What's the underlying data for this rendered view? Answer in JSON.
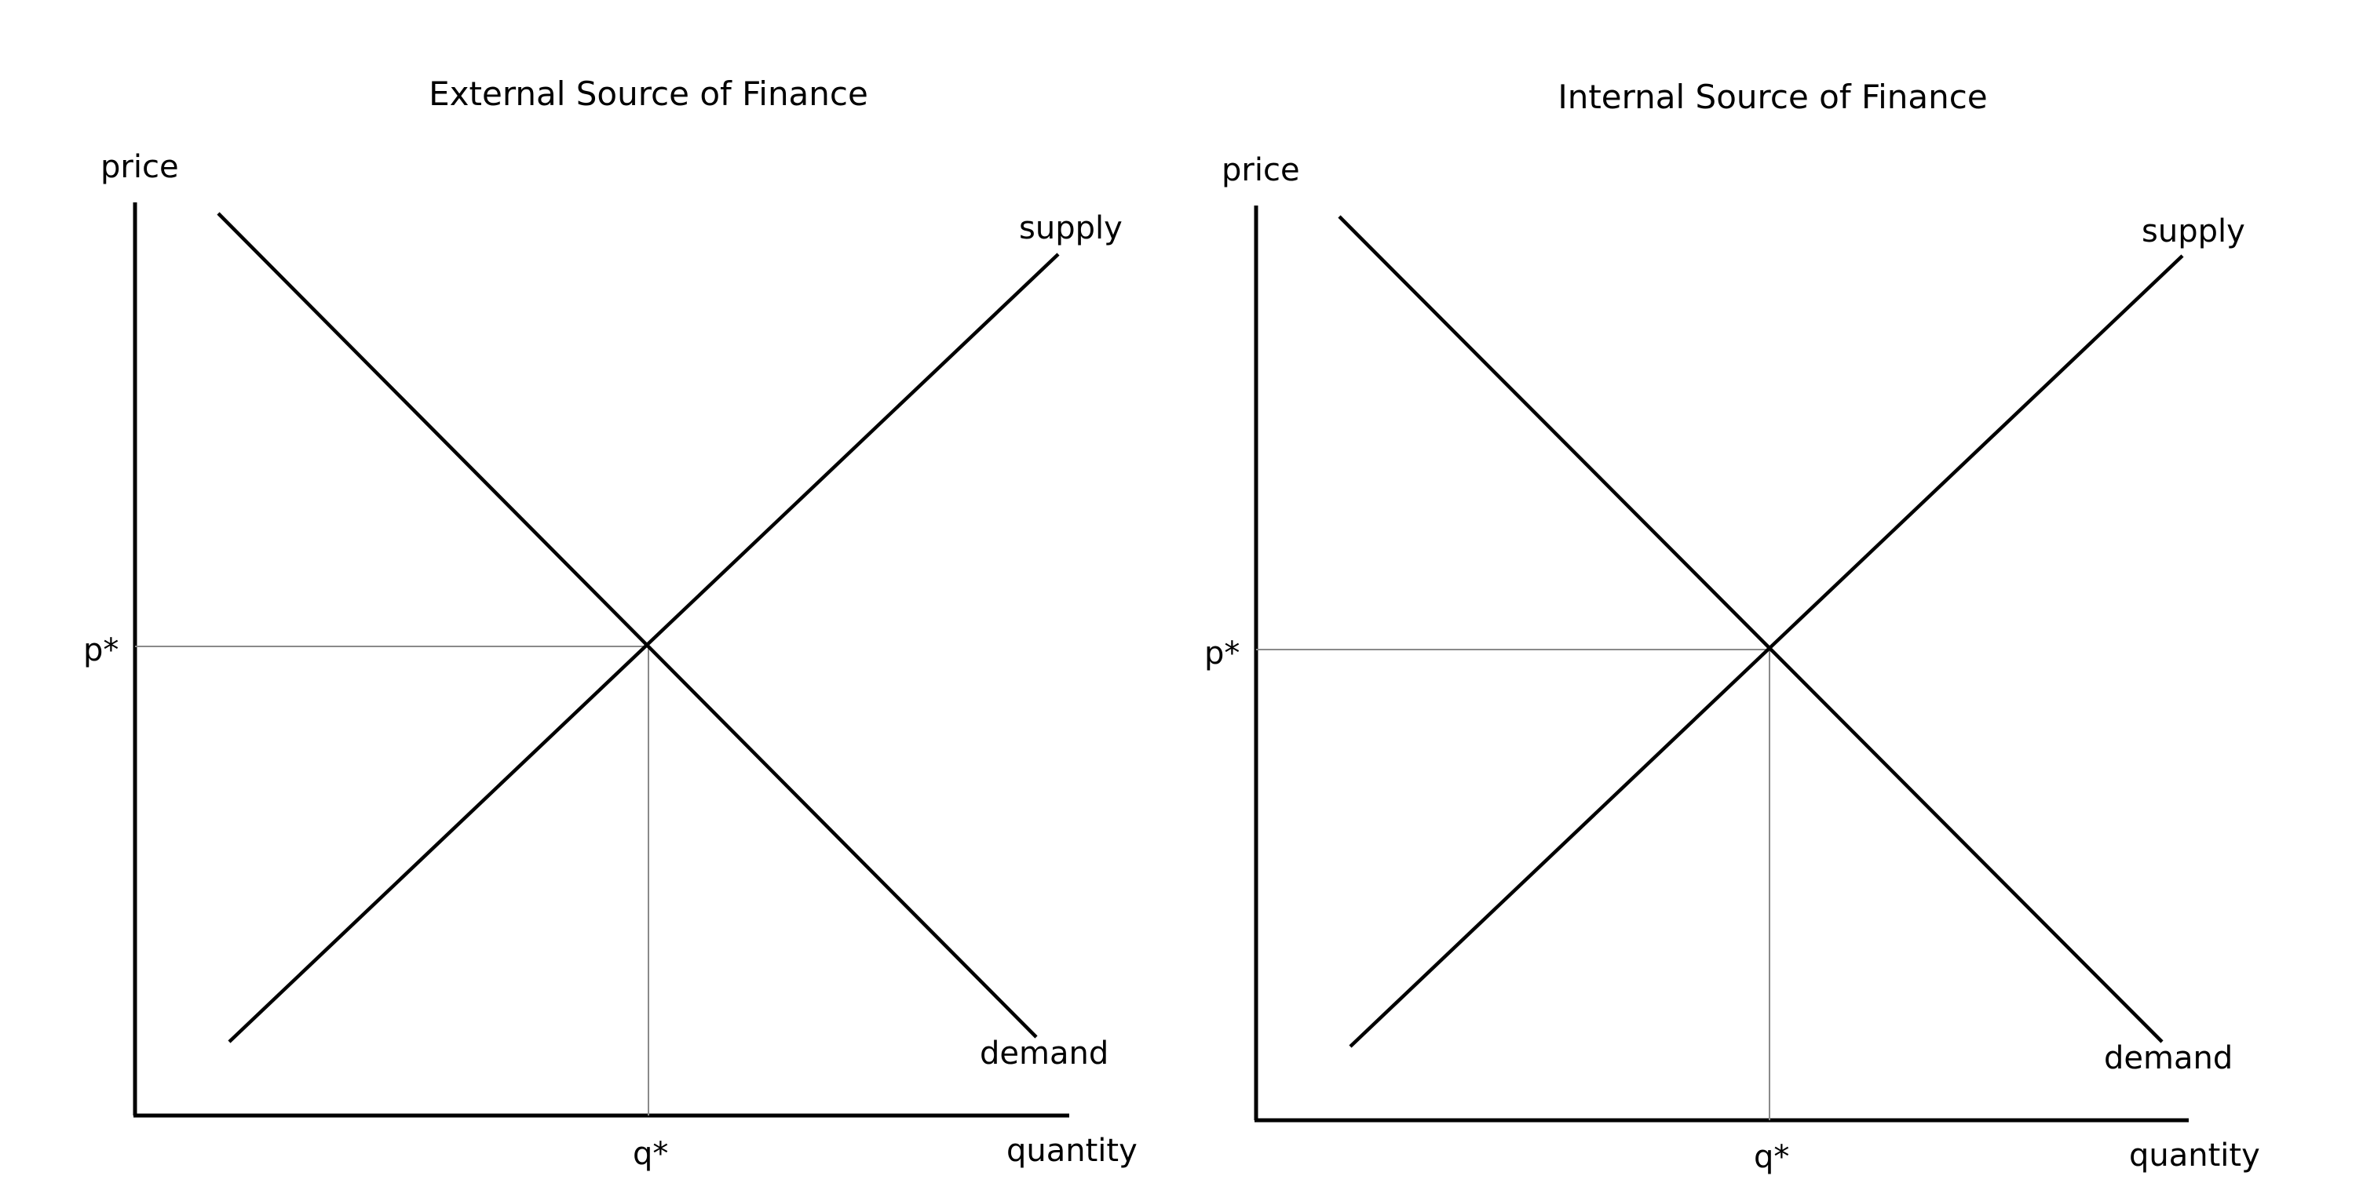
{
  "diagrams": [
    {
      "title": "External Source of Finance",
      "y_axis_label": "price",
      "x_axis_label": "quantity",
      "supply_label": "supply",
      "demand_label": "demand",
      "price_marker": "p*",
      "quantity_marker": "q*"
    },
    {
      "title": "Internal Source of Finance",
      "y_axis_label": "price",
      "x_axis_label": "quantity",
      "supply_label": "supply",
      "demand_label": "demand",
      "price_marker": "p*",
      "quantity_marker": "q*"
    }
  ]
}
